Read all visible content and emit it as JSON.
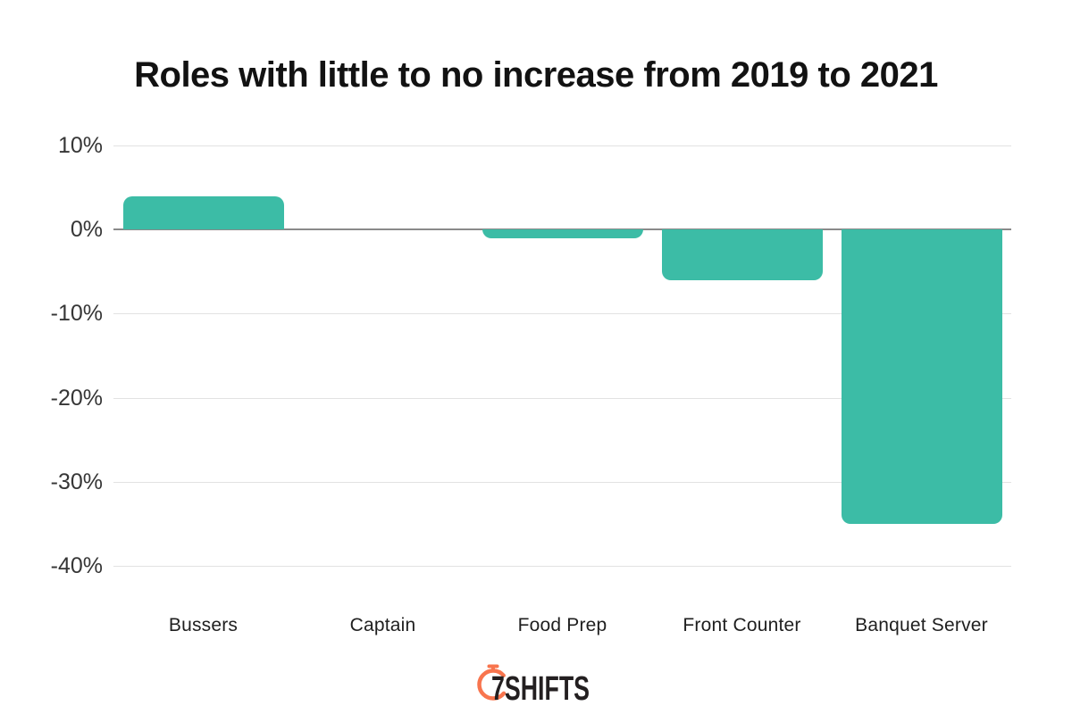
{
  "chart_data": {
    "type": "bar",
    "title": "Roles with little to no increase from 2019 to 2021",
    "categories": [
      "Bussers",
      "Captain",
      "Food Prep",
      "Front Counter",
      "Banquet Server"
    ],
    "values": [
      4,
      0,
      -1,
      -6,
      -35
    ],
    "value_unit": "%",
    "y_ticks": [
      10,
      0,
      -10,
      -20,
      -30,
      -40
    ],
    "ylim": [
      -40,
      10
    ],
    "xlabel": "",
    "ylabel": "",
    "grid": true,
    "legend": false,
    "bar_color": "#3CBCA6"
  },
  "branding": {
    "logo_text": "7SHIFTS",
    "logo_icon": "stopwatch-icon",
    "accent_color": "#F8754E",
    "text_color": "#231F20"
  }
}
